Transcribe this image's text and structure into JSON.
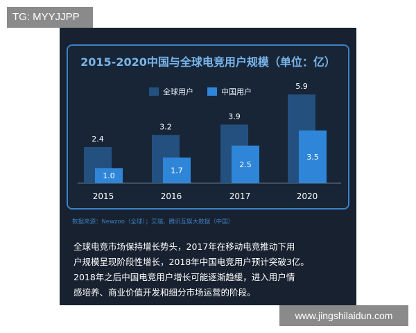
{
  "tag": "TG: MYYJJPP",
  "watermark": "www.jingshilaidun.com",
  "colors": {
    "panel_bg": "#18212f",
    "global_series": "#24507f",
    "china_series": "#2f86d8",
    "title": "#79b4ea"
  },
  "chart_data": {
    "type": "bar",
    "title": "2015-2020中国与全球电竞用户规模（单位：亿）",
    "categories": [
      "2015",
      "2016",
      "2017",
      "2020"
    ],
    "series": [
      {
        "name": "全球用户",
        "values": [
          2.4,
          3.2,
          3.9,
          5.9
        ],
        "labels": [
          "2.4",
          "3.2",
          "3.9",
          "5.9"
        ]
      },
      {
        "name": "中国用户",
        "values": [
          1.0,
          1.7,
          2.5,
          3.5
        ],
        "labels": [
          "1.0",
          "1.7",
          "2.5",
          "3.5"
        ]
      }
    ],
    "xlabel": "",
    "ylabel": "",
    "ylim": [
      0,
      6
    ],
    "grid": false,
    "legend": "top-center"
  },
  "source": "数据来源：Newzoo（全球）；艾瑞、腾讯互娱大数据（中国）",
  "description": [
    "全球电竞市场保持增长势头，2017年在移动电竞推动下用",
    "户规模呈现阶段性增长，2018年中国电竞用户预计突破3亿。",
    "2018年之后中国电竞用户增长可能逐渐趋缓，进入用户情",
    "感培养、商业价值开发和细分市场运营的阶段。"
  ]
}
